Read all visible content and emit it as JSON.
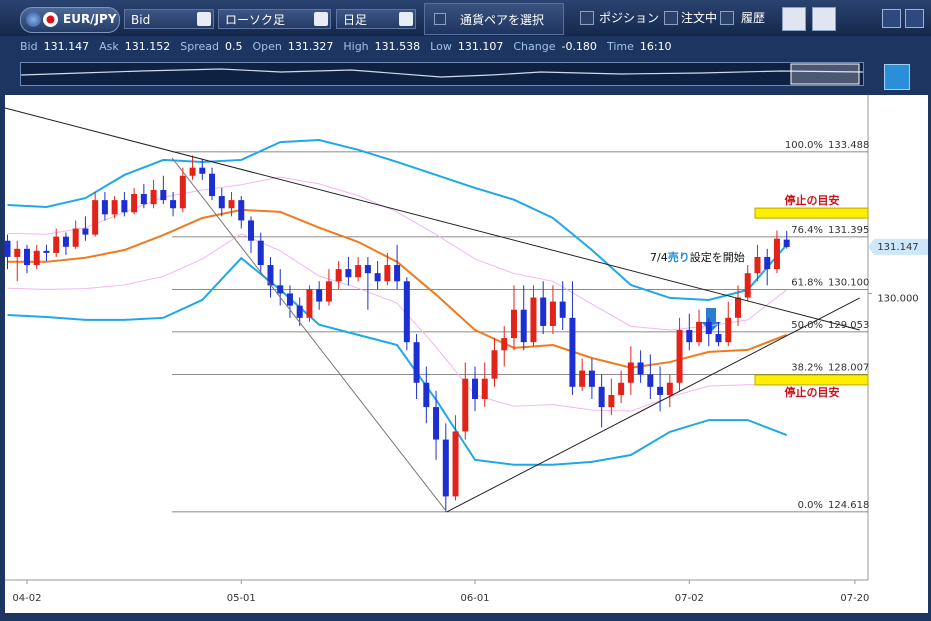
{
  "toolbar": {
    "pair": "EUR/JPY",
    "price_type": "Bid",
    "chart_type": "ローソク足",
    "period": "日足",
    "select_button": "通貨ペアを選択",
    "checkboxes": [
      "ポジション",
      "注文中",
      "履歴"
    ]
  },
  "quote": [
    {
      "label": "Bid",
      "value": "131.147"
    },
    {
      "label": "Ask",
      "value": "131.152"
    },
    {
      "label": "Spread",
      "value": "0.5"
    },
    {
      "label": "Open",
      "value": "131.327"
    },
    {
      "label": "High",
      "value": "131.538"
    },
    {
      "label": "Low",
      "value": "131.107"
    },
    {
      "label": "Change",
      "value": "-0.180"
    },
    {
      "label": "Time",
      "value": "16:10"
    }
  ],
  "chart_data": {
    "type": "candlestick",
    "categories": [
      null,
      null,
      "04-02",
      null,
      null,
      null,
      null,
      null,
      null,
      null,
      null,
      null,
      null,
      null,
      null,
      null,
      null,
      null,
      null,
      null,
      null,
      null,
      null,
      null,
      "05-01",
      null,
      null,
      null,
      null,
      null,
      null,
      null,
      null,
      null,
      null,
      null,
      null,
      null,
      null,
      null,
      null,
      null,
      null,
      null,
      null,
      null,
      null,
      null,
      "06-01",
      null,
      null,
      null,
      null,
      null,
      null,
      null,
      null,
      null,
      null,
      null,
      null,
      null,
      null,
      null,
      null,
      null,
      null,
      null,
      null,
      null,
      "07-02",
      null,
      null,
      null,
      null,
      null,
      null,
      null,
      null,
      null,
      null,
      null,
      null,
      null,
      null,
      null,
      null,
      "07-20",
      null
    ],
    "open": [
      131.3,
      130.9,
      131.1,
      130.7,
      131.05,
      131.0,
      131.4,
      131.15,
      131.6,
      131.45,
      132.3,
      131.95,
      132.3,
      132.0,
      132.45,
      132.2,
      132.55,
      132.3,
      132.1,
      132.9,
      133.1,
      132.95,
      132.4,
      132.1,
      132.3,
      131.8,
      131.3,
      130.7,
      130.2,
      130.0,
      129.7,
      129.4,
      130.1,
      129.8,
      130.3,
      130.6,
      130.4,
      130.7,
      130.5,
      130.3,
      130.7,
      130.3,
      128.8,
      127.8,
      127.2,
      126.4,
      125.0,
      126.6,
      127.9,
      127.4,
      127.9,
      128.6,
      128.9,
      129.6,
      128.8,
      129.9,
      129.2,
      129.8,
      129.4,
      127.7,
      128.1,
      127.7,
      127.2,
      127.5,
      127.8,
      128.3,
      128.0,
      127.7,
      127.5,
      127.8,
      129.1,
      128.8,
      129.3,
      129.0,
      128.8,
      129.4,
      129.9,
      130.5,
      130.9,
      130.6,
      131.327,
      null,
      null,
      null,
      null,
      null,
      null,
      null,
      null
    ],
    "high": [
      131.45,
      131.3,
      131.2,
      131.2,
      131.2,
      131.6,
      131.5,
      131.8,
      131.9,
      132.5,
      132.5,
      132.4,
      132.5,
      132.6,
      132.7,
      132.8,
      132.9,
      132.5,
      133.1,
      133.4,
      133.3,
      133.1,
      132.6,
      132.5,
      132.4,
      131.9,
      131.5,
      130.9,
      130.6,
      130.2,
      129.9,
      130.2,
      130.3,
      130.6,
      130.8,
      130.9,
      130.9,
      130.9,
      130.8,
      131.0,
      131.2,
      130.4,
      129.0,
      128.2,
      127.6,
      126.8,
      127.0,
      128.3,
      128.2,
      128.3,
      128.9,
      129.2,
      130.2,
      130.2,
      130.2,
      130.3,
      130.2,
      130.3,
      130.3,
      128.4,
      128.4,
      128.0,
      127.9,
      128.1,
      128.7,
      128.6,
      128.5,
      128.2,
      128.0,
      129.4,
      129.5,
      129.6,
      129.4,
      129.3,
      129.8,
      130.2,
      130.7,
      131.2,
      131.1,
      131.55,
      131.538,
      null,
      null,
      null,
      null,
      null,
      null,
      null,
      null
    ],
    "low": [
      130.6,
      130.3,
      130.5,
      130.6,
      130.8,
      130.9,
      130.95,
      131.1,
      131.3,
      131.4,
      131.8,
      131.85,
      131.9,
      131.95,
      132.1,
      132.1,
      132.2,
      131.9,
      132.0,
      132.8,
      132.8,
      132.3,
      131.9,
      131.9,
      131.6,
      131.0,
      130.5,
      129.9,
      129.7,
      129.4,
      129.2,
      129.3,
      129.6,
      129.7,
      130.1,
      130.2,
      130.3,
      129.6,
      130.1,
      130.2,
      130.1,
      128.6,
      127.4,
      126.8,
      125.9,
      124.618,
      124.9,
      126.4,
      127.1,
      127.2,
      127.7,
      128.2,
      128.6,
      128.6,
      128.7,
      129.0,
      129.0,
      129.1,
      127.5,
      127.6,
      127.4,
      126.7,
      127.0,
      127.3,
      127.5,
      127.8,
      127.4,
      127.1,
      127.2,
      127.6,
      128.6,
      128.7,
      128.7,
      128.7,
      128.7,
      129.2,
      129.8,
      130.3,
      130.2,
      130.5,
      131.107,
      null,
      null,
      null,
      null,
      null,
      null,
      null,
      null
    ],
    "close": [
      130.9,
      131.1,
      130.7,
      131.05,
      131.0,
      131.4,
      131.15,
      131.6,
      131.45,
      132.3,
      131.95,
      132.3,
      132.0,
      132.45,
      132.2,
      132.55,
      132.3,
      132.1,
      132.9,
      133.1,
      132.95,
      132.4,
      132.1,
      132.3,
      131.8,
      131.3,
      130.7,
      130.2,
      130.0,
      129.7,
      129.4,
      130.1,
      129.8,
      130.3,
      130.6,
      130.4,
      130.7,
      130.5,
      130.3,
      130.7,
      130.3,
      128.8,
      127.8,
      127.2,
      126.4,
      125.0,
      126.6,
      127.9,
      127.4,
      127.9,
      128.6,
      128.9,
      129.6,
      128.8,
      129.9,
      129.2,
      129.8,
      129.4,
      127.7,
      128.1,
      127.7,
      127.2,
      127.5,
      127.8,
      128.3,
      128.0,
      127.7,
      127.5,
      127.8,
      129.1,
      128.8,
      129.3,
      129.0,
      128.8,
      129.4,
      129.9,
      130.5,
      130.9,
      130.6,
      131.35,
      131.147,
      null,
      null,
      null,
      null,
      null,
      null,
      null,
      null
    ],
    "up_color": "#e2231a",
    "down_color": "#1c2fd0",
    "ylim": [
      122.94,
      134.89
    ],
    "yticks": [
      {
        "value": 130.0,
        "label": "130.000"
      }
    ],
    "last_price": 131.147,
    "indicators": {
      "x": [
        0,
        4,
        8,
        12,
        16,
        20,
        24,
        28,
        32,
        36,
        40,
        44,
        48,
        52,
        56,
        60,
        64,
        68,
        72,
        76,
        80
      ],
      "series": [
        {
          "color": "#1fa8e8",
          "width": 2,
          "values": [
            132.18,
            132.13,
            132.35,
            132.92,
            133.29,
            133.24,
            133.29,
            133.73,
            133.78,
            133.54,
            133.24,
            132.92,
            132.6,
            132.31,
            131.86,
            131.07,
            130.21,
            129.89,
            129.84,
            130.09,
            131.2
          ]
        },
        {
          "color": "#1fa8e8",
          "width": 2,
          "values": [
            129.47,
            129.42,
            129.35,
            129.35,
            129.4,
            129.84,
            130.87,
            130.09,
            129.23,
            128.98,
            128.73,
            127.38,
            125.9,
            125.78,
            125.78,
            125.85,
            126.02,
            126.59,
            126.88,
            126.88,
            126.51
          ]
        },
        {
          "color": "#f3b6ef",
          "width": 1,
          "values": [
            131.48,
            131.46,
            131.62,
            132.0,
            132.37,
            132.55,
            132.68,
            132.87,
            132.7,
            132.41,
            132.01,
            131.45,
            130.85,
            130.49,
            130.3,
            129.74,
            129.19,
            129.1,
            129.2,
            129.35,
            130.09
          ]
        },
        {
          "color": "#f3b6ef",
          "width": 1,
          "values": [
            130.13,
            130.1,
            130.12,
            130.21,
            130.42,
            130.85,
            131.47,
            131.05,
            130.43,
            130.13,
            129.76,
            128.68,
            127.5,
            127.22,
            127.26,
            127.13,
            127.1,
            127.45,
            127.72,
            127.75,
            127.75
          ]
        },
        {
          "color": "#f07a1e",
          "width": 2,
          "values": [
            130.78,
            130.78,
            130.88,
            131.07,
            131.44,
            131.86,
            132.06,
            132.01,
            131.62,
            131.27,
            130.78,
            129.97,
            129.1,
            128.66,
            128.73,
            128.41,
            128.17,
            128.31,
            128.56,
            128.61,
            128.98
          ]
        }
      ]
    },
    "trendlines": [
      {
        "x": [
          -0.26,
          87.5
        ],
        "values": [
          134.57,
          129.1
        ],
        "color": "#222"
      },
      {
        "x": [
          45.1,
          87.5
        ],
        "values": [
          124.618,
          129.89
        ],
        "color": "#222"
      },
      {
        "x": [
          16.9,
          45.1
        ],
        "values": [
          133.34,
          124.618
        ],
        "color": "#777"
      }
    ],
    "fibonacci": [
      {
        "percent": "100.0%",
        "value": 133.488,
        "value_label": "133.488"
      },
      {
        "percent": "76.4%",
        "value": 131.395,
        "value_label": "131.395"
      },
      {
        "percent": "61.8%",
        "value": 130.1,
        "value_label": "130.100"
      },
      {
        "percent": "50.0%",
        "value": 129.053,
        "value_label": "129.053"
      },
      {
        "percent": "38.2%",
        "value": 128.007,
        "value_label": "128.007"
      },
      {
        "percent": "0.0%",
        "value": 124.618,
        "value_label": "124.618"
      }
    ],
    "stop_levels": [
      {
        "label": "停止の目安",
        "value": 131.98
      },
      {
        "label": "停止の目安",
        "value": 127.87
      }
    ],
    "annotation": {
      "parts": [
        "7/4",
        "売り",
        "設定を開始"
      ]
    }
  }
}
